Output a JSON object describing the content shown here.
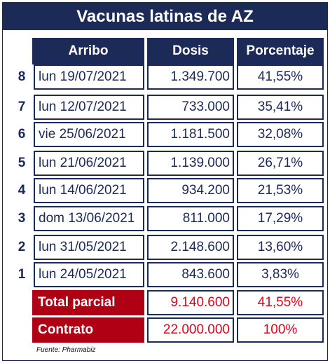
{
  "title": "Vacunas latinas de AZ",
  "headers": {
    "arribo": "Arribo",
    "dosis": "Dosis",
    "porcentaje": "Porcentaje"
  },
  "rows": [
    {
      "num": "8",
      "date": "lun 19/07/2021",
      "doses": "1.349.700",
      "percent": "41,55%"
    },
    {
      "num": "7",
      "date": "lun 12/07/2021",
      "doses": "733.000",
      "percent": "35,41%"
    },
    {
      "num": "6",
      "date": "vie 25/06/2021",
      "doses": "1.181.500",
      "percent": "32,08%"
    },
    {
      "num": "5",
      "date": "lun 21/06/2021",
      "doses": "1.139.000",
      "percent": "26,71%"
    },
    {
      "num": "4",
      "date": "lun 14/06/2021",
      "doses": "934.200",
      "percent": "21,53%"
    },
    {
      "num": "3",
      "date": "dom 13/06/2021",
      "doses": "811.000",
      "percent": "17,29%"
    },
    {
      "num": "2",
      "date": "lun 31/05/2021",
      "doses": "2.148.600",
      "percent": "13,60%"
    },
    {
      "num": "1",
      "date": "lun 24/05/2021",
      "doses": "843.600",
      "percent": "3,83%"
    }
  ],
  "total_parcial": {
    "label": "Total parcial",
    "doses": "9.140.600",
    "percent": "41,55%"
  },
  "contrato": {
    "label": "Contrato",
    "doses": "22.000.000",
    "percent": "100%"
  },
  "source": "Fuente: Pharmabiz",
  "colors": {
    "navy": "#1c2a57",
    "red_fill": "#b00014",
    "red_text": "#e3001b"
  }
}
